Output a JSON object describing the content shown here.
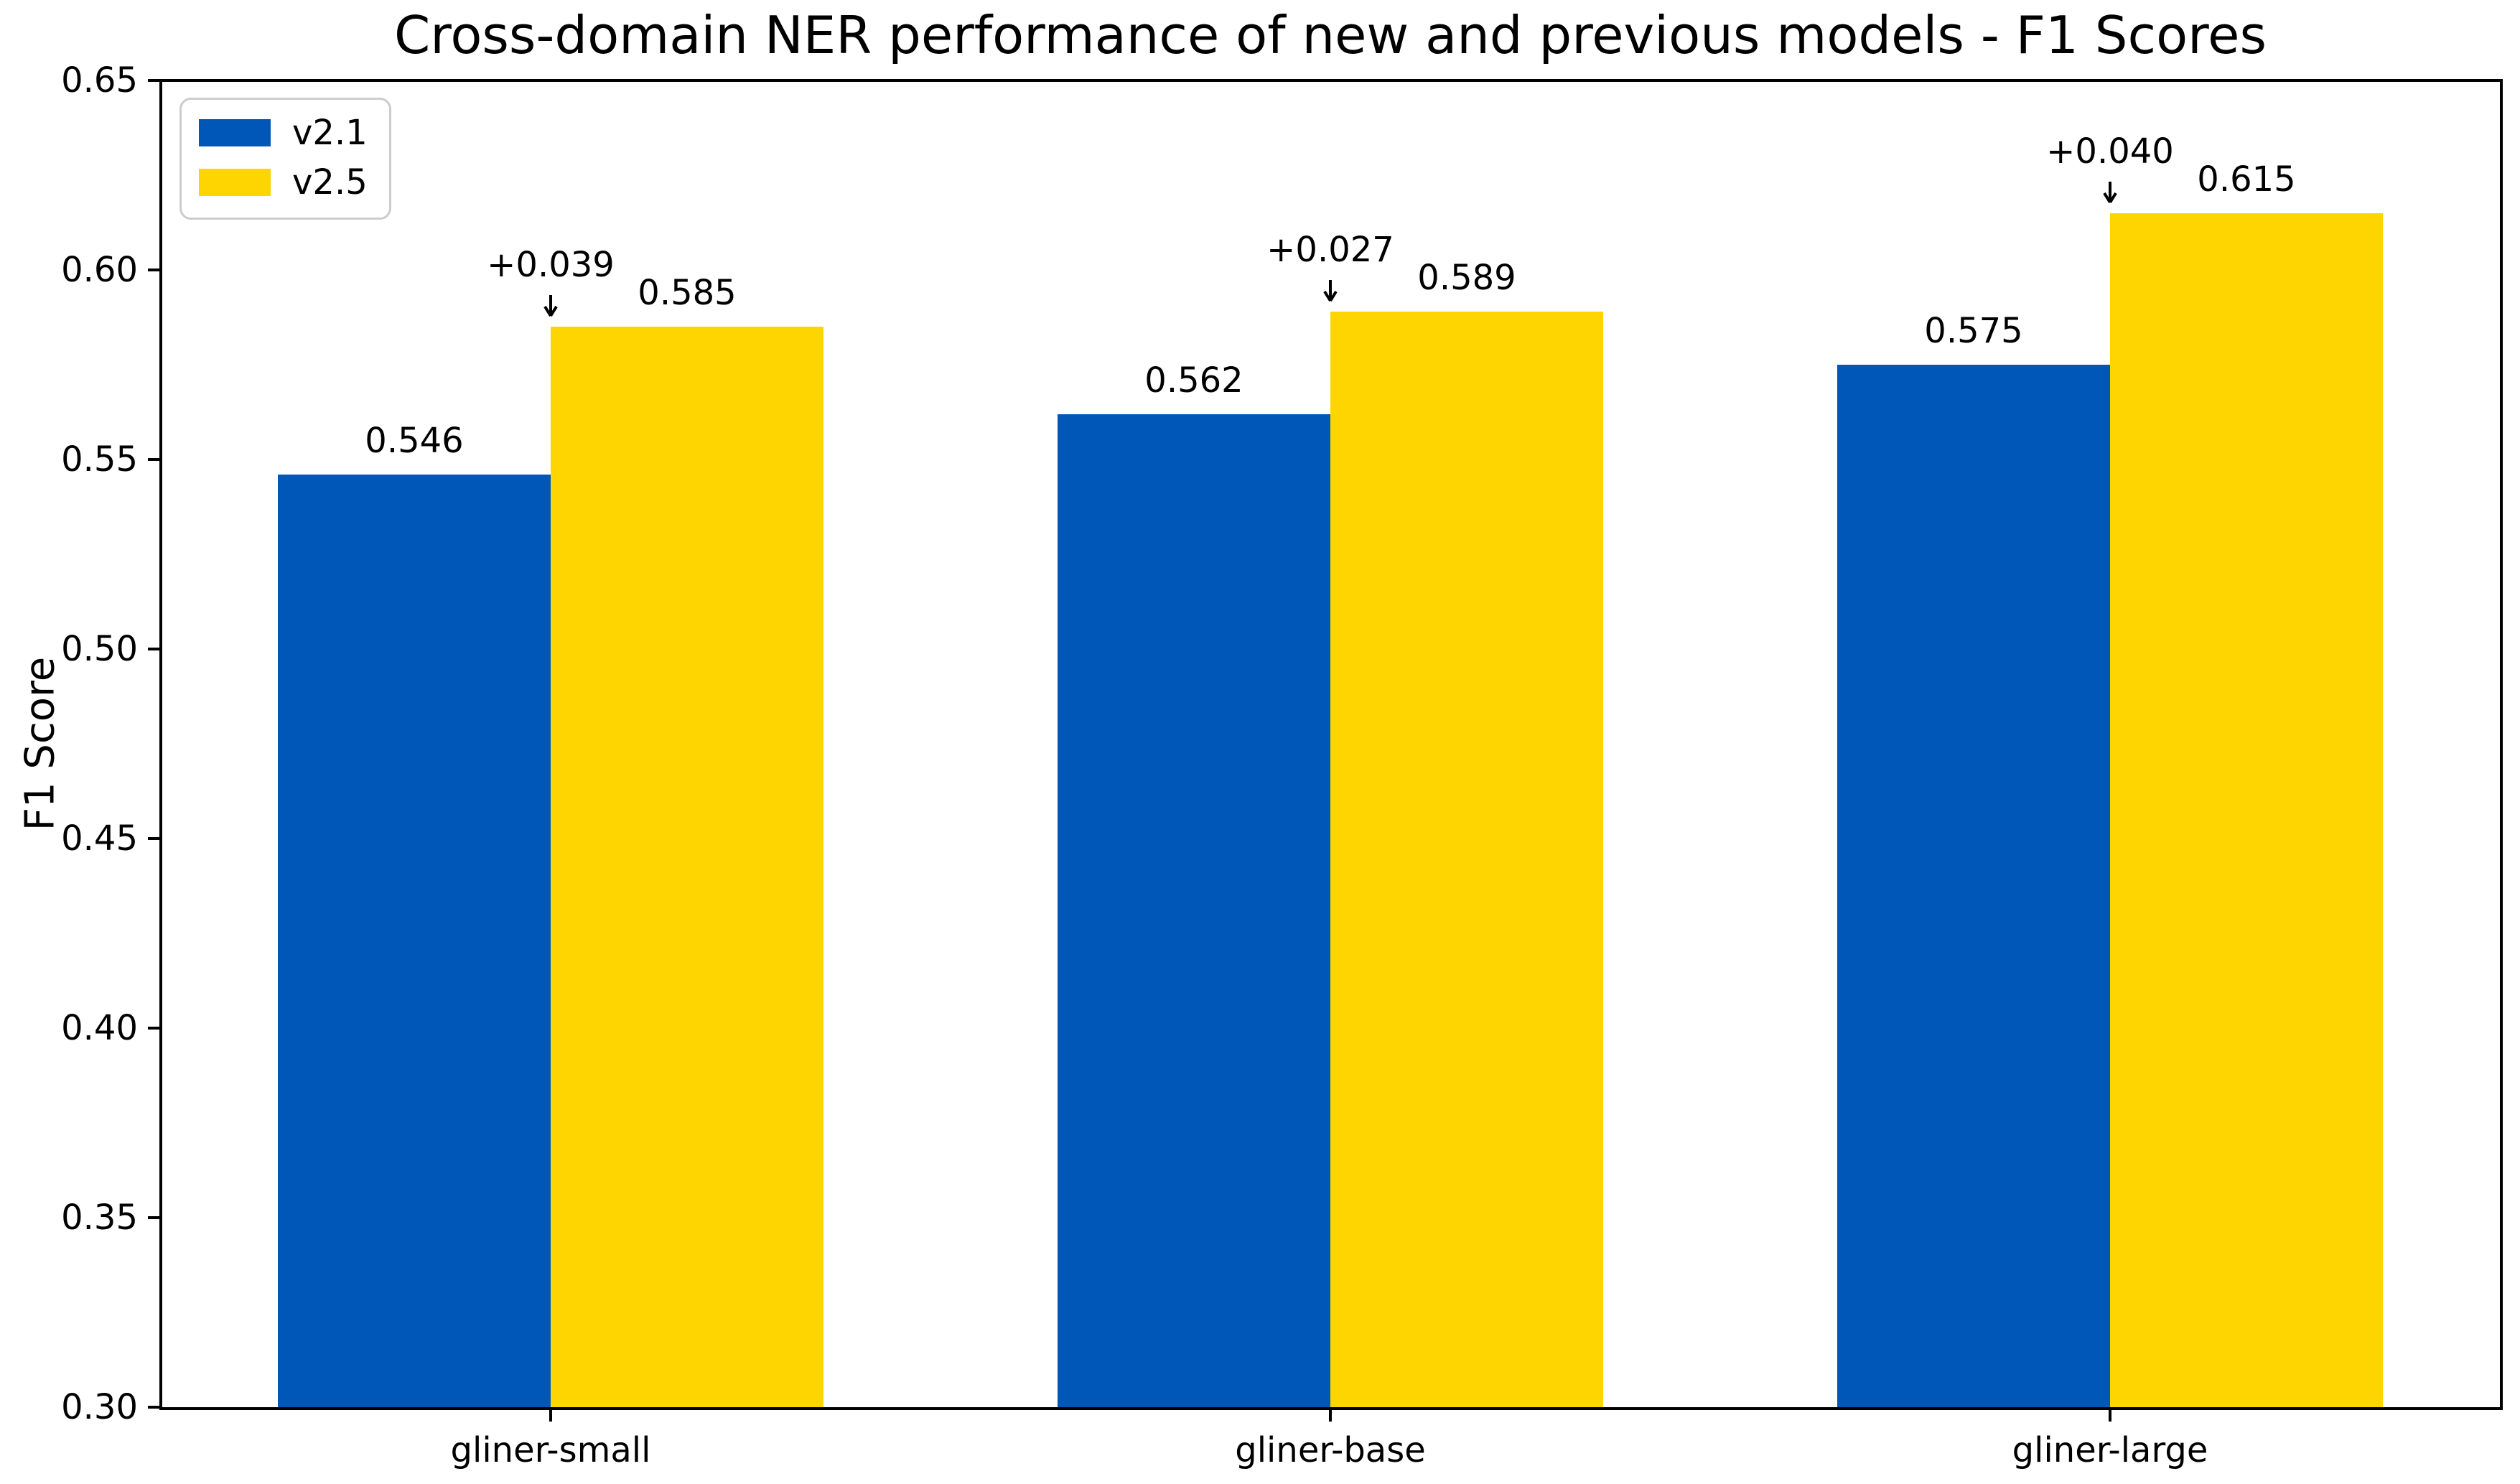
{
  "chart_data": {
    "type": "bar",
    "title": "Cross-domain NER performance of new and previous models - F1 Scores",
    "xlabel": "",
    "ylabel": "F1 Score",
    "ylim": [
      0.3,
      0.65
    ],
    "yticks": [
      "0.30",
      "0.35",
      "0.40",
      "0.45",
      "0.50",
      "0.55",
      "0.60",
      "0.65"
    ],
    "grid": false,
    "legend_position": "upper-left",
    "categories": [
      "gliner-small",
      "gliner-base",
      "gliner-large"
    ],
    "series": [
      {
        "name": "v2.1",
        "color": "#0057B8",
        "values": [
          0.546,
          0.562,
          0.575
        ],
        "labels": [
          "0.546",
          "0.562",
          "0.575"
        ]
      },
      {
        "name": "v2.5",
        "color": "#FFD500",
        "values": [
          0.585,
          0.589,
          0.615
        ],
        "labels": [
          "0.585",
          "0.589",
          "0.615"
        ]
      }
    ],
    "delta_annotations": [
      "+0.039",
      "+0.027",
      "+0.040"
    ]
  }
}
